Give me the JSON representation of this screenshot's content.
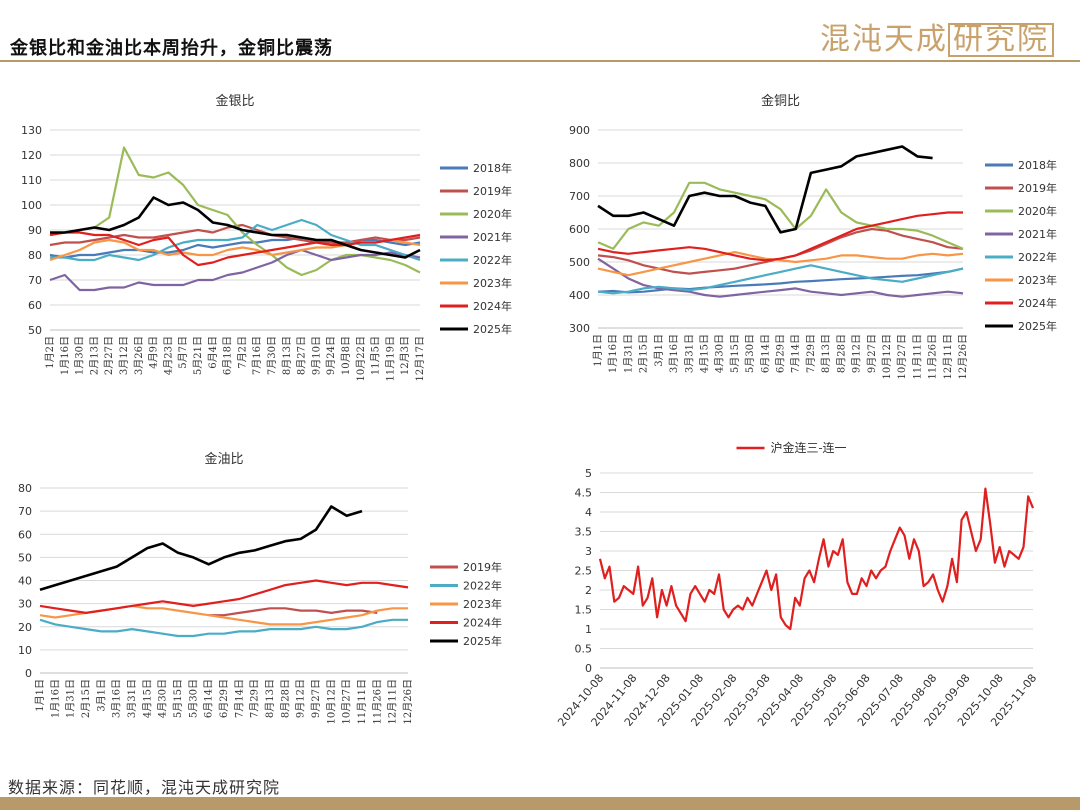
{
  "header": {
    "title": "金银比和金油比本周抬升，金铜比震荡",
    "logo_main": "混沌天成",
    "logo_box": "研究院"
  },
  "footer": {
    "source": "数据来源：同花顺，混沌天成研究院"
  },
  "colors": {
    "gold": "#b89a6a",
    "series": {
      "2018年": "#4a7ab8",
      "2019年": "#c0504d",
      "2020年": "#9bbb59",
      "2021年": "#8064a2",
      "2022年": "#4bacc6",
      "2023年": "#f79646",
      "2024年": "#e01f1f",
      "2025年": "#000000"
    }
  },
  "chart_data": [
    {
      "type": "line",
      "title": "金银比",
      "ylim": [
        50,
        130
      ],
      "yticks": [
        "130",
        "120",
        "110",
        "100",
        "90",
        "80",
        "70",
        "60",
        "50"
      ],
      "xticks": [
        "1月2日",
        "1月16日",
        "1月30日",
        "2月13日",
        "2月27日",
        "3月12日",
        "3月26日",
        "4月9日",
        "4月23日",
        "5月7日",
        "5月21日",
        "6月4日",
        "6月18日",
        "7月2日",
        "7月16日",
        "7月30日",
        "8月13日",
        "8月27日",
        "9月10日",
        "9月24日",
        "10月8日",
        "10月22日",
        "11月5日",
        "11月19日",
        "12月3日",
        "12月17日"
      ],
      "series": [
        {
          "name": "2018年",
          "values": [
            80,
            79,
            80,
            80,
            81,
            82,
            82,
            81,
            81,
            82,
            84,
            83,
            84,
            85,
            85,
            86,
            86,
            87,
            86,
            85,
            84,
            86,
            86,
            85,
            84,
            85
          ]
        },
        {
          "name": "2019年",
          "values": [
            84,
            85,
            85,
            86,
            87,
            88,
            87,
            87,
            88,
            89,
            90,
            89,
            91,
            92,
            90,
            88,
            87,
            86,
            85,
            85,
            85,
            86,
            87,
            86,
            86,
            87
          ]
        },
        {
          "name": "2020年",
          "values": [
            88,
            89,
            90,
            91,
            95,
            123,
            112,
            111,
            113,
            108,
            100,
            98,
            96,
            89,
            84,
            80,
            75,
            72,
            74,
            78,
            80,
            80,
            79,
            78,
            76,
            73
          ]
        },
        {
          "name": "2021年",
          "values": [
            70,
            72,
            66,
            66,
            67,
            67,
            69,
            68,
            68,
            68,
            70,
            70,
            72,
            73,
            75,
            77,
            80,
            82,
            80,
            78,
            79,
            80,
            80,
            81,
            80,
            79
          ]
        },
        {
          "name": "2022年",
          "values": [
            79,
            79,
            78,
            78,
            80,
            79,
            78,
            80,
            83,
            85,
            86,
            86,
            86,
            87,
            92,
            90,
            92,
            94,
            92,
            88,
            86,
            84,
            84,
            82,
            80,
            78
          ]
        },
        {
          "name": "2023年",
          "values": [
            78,
            80,
            82,
            85,
            86,
            85,
            82,
            82,
            80,
            81,
            80,
            80,
            82,
            83,
            82,
            80,
            81,
            82,
            83,
            83,
            84,
            85,
            85,
            86,
            85,
            84
          ]
        },
        {
          "name": "2024年",
          "values": [
            88,
            89,
            89,
            88,
            88,
            86,
            84,
            86,
            87,
            80,
            76,
            77,
            79,
            80,
            81,
            82,
            83,
            84,
            85,
            84,
            84,
            85,
            85,
            86,
            87,
            88
          ]
        },
        {
          "name": "2025年",
          "values": [
            89,
            89,
            90,
            91,
            90,
            92,
            95,
            103,
            100,
            101,
            98,
            93,
            92,
            90,
            89,
            88,
            88,
            87,
            86,
            86,
            84,
            82,
            81,
            80,
            79,
            82
          ]
        }
      ],
      "legend": [
        "2018年",
        "2019年",
        "2020年",
        "2021年",
        "2022年",
        "2023年",
        "2024年",
        "2025年"
      ]
    },
    {
      "type": "line",
      "title": "金铜比",
      "ylim": [
        300,
        900
      ],
      "yticks": [
        "900",
        "800",
        "700",
        "600",
        "500",
        "400",
        "300"
      ],
      "xticks": [
        "1月1日",
        "1月16日",
        "1月31日",
        "2月15日",
        "3月1日",
        "3月16日",
        "3月31日",
        "4月15日",
        "4月30日",
        "5月15日",
        "5月30日",
        "6月14日",
        "6月29日",
        "7月14日",
        "7月29日",
        "8月13日",
        "8月28日",
        "9月12日",
        "9月27日",
        "10月12日",
        "10月27日",
        "11月11日",
        "11月26日",
        "12月11日",
        "12月26日"
      ],
      "series": [
        {
          "name": "2018年",
          "values": [
            410,
            412,
            408,
            410,
            415,
            420,
            418,
            422,
            425,
            428,
            430,
            432,
            435,
            440,
            442,
            445,
            448,
            450,
            452,
            455,
            458,
            460,
            465,
            470,
            480
          ]
        },
        {
          "name": "2019年",
          "values": [
            520,
            515,
            505,
            490,
            480,
            470,
            465,
            470,
            475,
            480,
            490,
            500,
            510,
            520,
            535,
            555,
            575,
            590,
            600,
            595,
            580,
            570,
            560,
            545,
            540
          ]
        },
        {
          "name": "2020年",
          "values": [
            560,
            540,
            600,
            620,
            610,
            650,
            740,
            740,
            720,
            710,
            700,
            690,
            660,
            600,
            640,
            720,
            650,
            620,
            610,
            600,
            600,
            595,
            580,
            560,
            540
          ]
        },
        {
          "name": "2021年",
          "values": [
            510,
            480,
            450,
            430,
            420,
            415,
            410,
            400,
            395,
            400,
            405,
            410,
            415,
            420,
            410,
            405,
            400,
            405,
            410,
            400,
            395,
            400,
            405,
            410,
            405
          ]
        },
        {
          "name": "2022年",
          "values": [
            410,
            405,
            410,
            420,
            425,
            420,
            415,
            420,
            430,
            440,
            450,
            460,
            470,
            480,
            490,
            480,
            470,
            460,
            450,
            445,
            440,
            450,
            460,
            470,
            480
          ]
        },
        {
          "name": "2023年",
          "values": [
            480,
            470,
            460,
            470,
            480,
            490,
            500,
            510,
            520,
            530,
            520,
            510,
            505,
            500,
            505,
            510,
            520,
            520,
            515,
            510,
            510,
            520,
            525,
            520,
            525
          ]
        },
        {
          "name": "2024年",
          "values": [
            540,
            530,
            525,
            530,
            535,
            540,
            545,
            540,
            530,
            520,
            510,
            505,
            510,
            520,
            540,
            560,
            580,
            600,
            610,
            620,
            630,
            640,
            645,
            650,
            650
          ]
        },
        {
          "name": "2025年",
          "values": [
            670,
            640,
            640,
            650,
            630,
            610,
            700,
            710,
            700,
            700,
            680,
            670,
            590,
            600,
            770,
            780,
            790,
            820,
            830,
            840,
            850,
            820,
            815,
            null,
            null
          ]
        }
      ],
      "legend": [
        "2018年",
        "2019年",
        "2020年",
        "2021年",
        "2022年",
        "2023年",
        "2024年",
        "2025年"
      ]
    },
    {
      "type": "line",
      "title": "金油比",
      "ylim": [
        0,
        80
      ],
      "yticks": [
        "80",
        "70",
        "60",
        "50",
        "40",
        "30",
        "20",
        "10",
        "0"
      ],
      "xticks": [
        "1月1日",
        "1月16日",
        "1月31日",
        "2月15日",
        "3月1日",
        "3月16日",
        "3月31日",
        "4月15日",
        "4月30日",
        "5月15日",
        "5月30日",
        "6月14日",
        "6月29日",
        "7月14日",
        "7月29日",
        "8月13日",
        "8月28日",
        "9月12日",
        "9月27日",
        "10月12日",
        "10月27日",
        "11月11日",
        "11月26日",
        "12月11日",
        "12月26日"
      ],
      "series": [
        {
          "name": "2019年",
          "values": [
            null,
            null,
            null,
            null,
            null,
            null,
            null,
            null,
            null,
            null,
            null,
            25,
            25,
            26,
            27,
            28,
            28,
            27,
            27,
            26,
            27,
            27,
            26,
            null,
            null
          ]
        },
        {
          "name": "2022年",
          "values": [
            23,
            21,
            20,
            19,
            18,
            18,
            19,
            18,
            17,
            16,
            16,
            17,
            17,
            18,
            18,
            19,
            19,
            19,
            20,
            19,
            19,
            20,
            22,
            23,
            23
          ]
        },
        {
          "name": "2023年",
          "values": [
            25,
            24,
            25,
            26,
            27,
            28,
            29,
            28,
            28,
            27,
            26,
            25,
            24,
            23,
            22,
            21,
            21,
            21,
            22,
            23,
            24,
            25,
            27,
            28,
            28
          ]
        },
        {
          "name": "2024年",
          "values": [
            29,
            28,
            27,
            26,
            27,
            28,
            29,
            30,
            31,
            30,
            29,
            30,
            31,
            32,
            34,
            36,
            38,
            39,
            40,
            39,
            38,
            39,
            39,
            38,
            37
          ]
        },
        {
          "name": "2025年",
          "values": [
            36,
            38,
            40,
            42,
            44,
            46,
            50,
            54,
            56,
            52,
            50,
            47,
            50,
            52,
            53,
            55,
            57,
            58,
            62,
            72,
            68,
            70,
            null,
            null,
            null
          ]
        }
      ],
      "legend": [
        "2019年",
        "2022年",
        "2023年",
        "2024年",
        "2025年"
      ]
    },
    {
      "type": "line",
      "title": "沪金连三-连一",
      "ylim": [
        0,
        5
      ],
      "yticks": [
        "5",
        "4.5",
        "4",
        "3.5",
        "3",
        "2.5",
        "2",
        "1.5",
        "1",
        "0.5",
        "0"
      ],
      "xticks": [
        "2024-10-08",
        "2024-11-08",
        "2024-12-08",
        "2025-01-08",
        "2025-02-08",
        "2025-03-08",
        "2025-04-08",
        "2025-05-08",
        "2025-06-08",
        "2025-07-08",
        "2025-08-08",
        "2025-09-08",
        "2025-10-08",
        "2025-11-08"
      ],
      "series": [
        {
          "name": "沪金连三-连一",
          "values": [
            2.8,
            2.3,
            2.6,
            1.7,
            1.8,
            2.1,
            2.0,
            1.9,
            2.6,
            1.6,
            1.8,
            2.3,
            1.3,
            2.0,
            1.6,
            2.1,
            1.6,
            1.4,
            1.2,
            1.9,
            2.1,
            1.9,
            1.7,
            2.0,
            1.9,
            2.4,
            1.5,
            1.3,
            1.5,
            1.6,
            1.5,
            1.8,
            1.6,
            1.9,
            2.2,
            2.5,
            2.0,
            2.4,
            1.3,
            1.1,
            1.0,
            1.8,
            1.6,
            2.3,
            2.5,
            2.2,
            2.8,
            3.3,
            2.6,
            3.0,
            2.9,
            3.3,
            2.2,
            1.9,
            1.9,
            2.3,
            2.1,
            2.5,
            2.3,
            2.5,
            2.6,
            3.0,
            3.3,
            3.6,
            3.4,
            2.8,
            3.3,
            3.0,
            2.1,
            2.2,
            2.4,
            2.0,
            1.7,
            2.1,
            2.8,
            2.2,
            3.8,
            4.0,
            3.5,
            3.0,
            3.3,
            4.6,
            3.7,
            2.7,
            3.1,
            2.6,
            3.0,
            2.9,
            2.8,
            3.1,
            4.4,
            4.1
          ]
        }
      ],
      "legend": [
        "沪金连三-连一"
      ]
    }
  ]
}
